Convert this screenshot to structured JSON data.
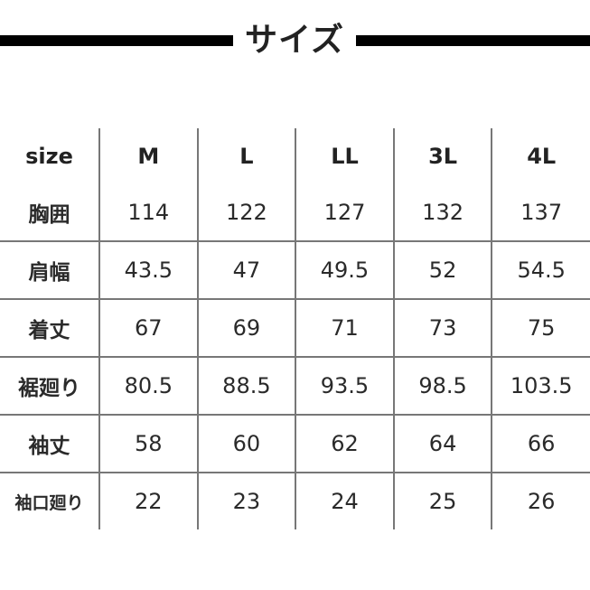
{
  "title": "サイズ",
  "table": {
    "headers": [
      "size",
      "M",
      "L",
      "LL",
      "3L",
      "4L"
    ],
    "rows": [
      {
        "label": "胸囲",
        "values": [
          "114",
          "122",
          "127",
          "132",
          "137"
        ]
      },
      {
        "label": "肩幅",
        "values": [
          "43.5",
          "47",
          "49.5",
          "52",
          "54.5"
        ]
      },
      {
        "label": "着丈",
        "values": [
          "67",
          "69",
          "71",
          "73",
          "75"
        ]
      },
      {
        "label": "裾廻り",
        "values": [
          "80.5",
          "88.5",
          "93.5",
          "98.5",
          "103.5"
        ]
      },
      {
        "label": "袖丈",
        "values": [
          "58",
          "60",
          "62",
          "64",
          "66"
        ]
      },
      {
        "label": "袖口廻り",
        "values": [
          "22",
          "23",
          "24",
          "25",
          "26"
        ]
      }
    ]
  }
}
